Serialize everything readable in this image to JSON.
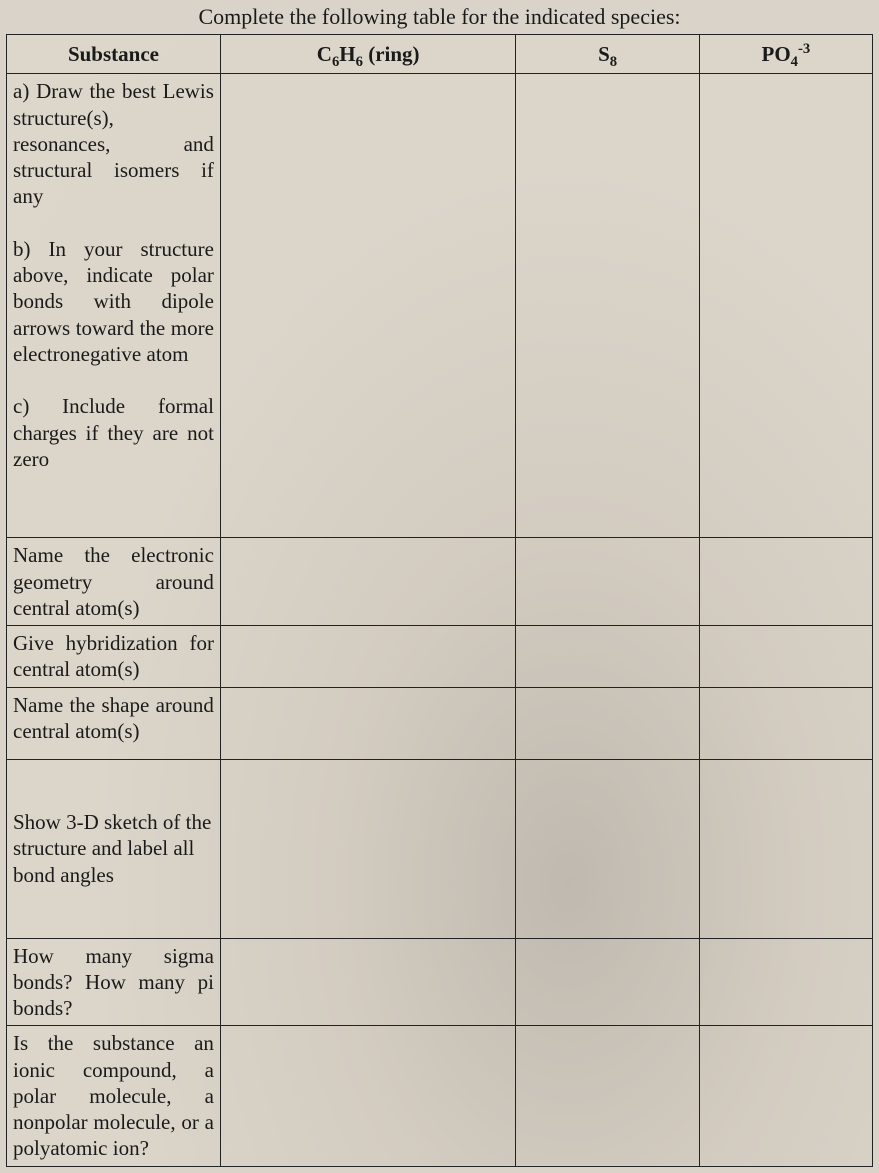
{
  "title_prefix": "Complete the following table for the indicated species:",
  "headers": {
    "substance": "Substance",
    "col1_pre": "C",
    "col1_sub1": "6",
    "col1_mid": "H",
    "col1_sub2": "6",
    "col1_post": " (ring)",
    "col2_pre": "S",
    "col2_sub": "8",
    "col3_pre": "PO",
    "col3_sub": "4",
    "col3_sup": "-3"
  },
  "rows": {
    "lewis_block": "a) Draw the best Lewis structure(s), resonances, and structural isomers if any\n\nb) In your structure above, indicate polar bonds with dipole arrows toward the more electronegative atom\n\nc) Include formal charges if they are not zero",
    "egeom": "Name the electronic geometry around central atom(s)",
    "hybrid": "Give hybridization for central atom(s)",
    "shape": "Name the shape around central atom(s)",
    "sketch": "Show 3-D sketch of the structure and label all bond angles",
    "sigma": "How many sigma bonds? How many pi bonds?",
    "ionic": "Is the substance an ionic compound, a polar molecule, a nonpolar molecule, or a polyatomic ion?"
  },
  "cells": {
    "r1c1": "",
    "r1c2": "",
    "r1c3": "",
    "r2c1": "",
    "r2c2": "",
    "r2c3": "",
    "r3c1": "",
    "r3c2": "",
    "r3c3": "",
    "r4c1": "",
    "r4c2": "",
    "r4c3": "",
    "r5c1": "",
    "r5c2": "",
    "r5c3": "",
    "r6c1": "",
    "r6c2": "",
    "r6c3": "",
    "r7c1": "",
    "r7c2": "",
    "r7c3": ""
  }
}
